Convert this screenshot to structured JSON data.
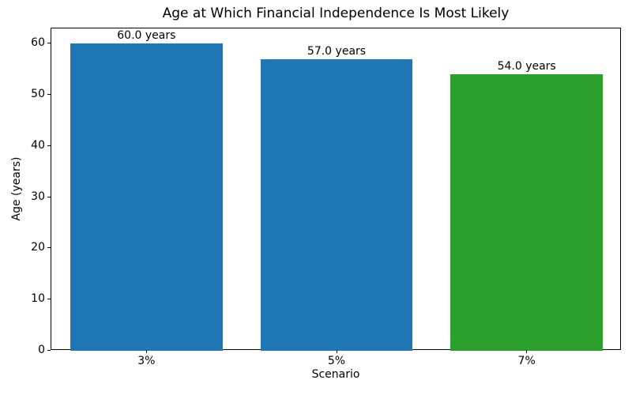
{
  "chart_data": {
    "type": "bar",
    "title": "Age at Which Financial Independence Is Most Likely",
    "xlabel": "Scenario",
    "ylabel": "Age (years)",
    "categories": [
      "3%",
      "5%",
      "7%"
    ],
    "values": [
      60.0,
      57.0,
      54.0
    ],
    "bar_labels": [
      "60.0 years",
      "57.0 years",
      "54.0 years"
    ],
    "bar_colors": [
      "#1f77b4",
      "#1f77b4",
      "#2ca02c"
    ],
    "ylim": [
      0,
      63
    ],
    "yticks": [
      0,
      10,
      20,
      30,
      40,
      50,
      60
    ],
    "bar_width_ratio": 0.8,
    "grid": false,
    "legend_position": "none",
    "spine_color": "#000000",
    "background_color": "#ffffff"
  }
}
